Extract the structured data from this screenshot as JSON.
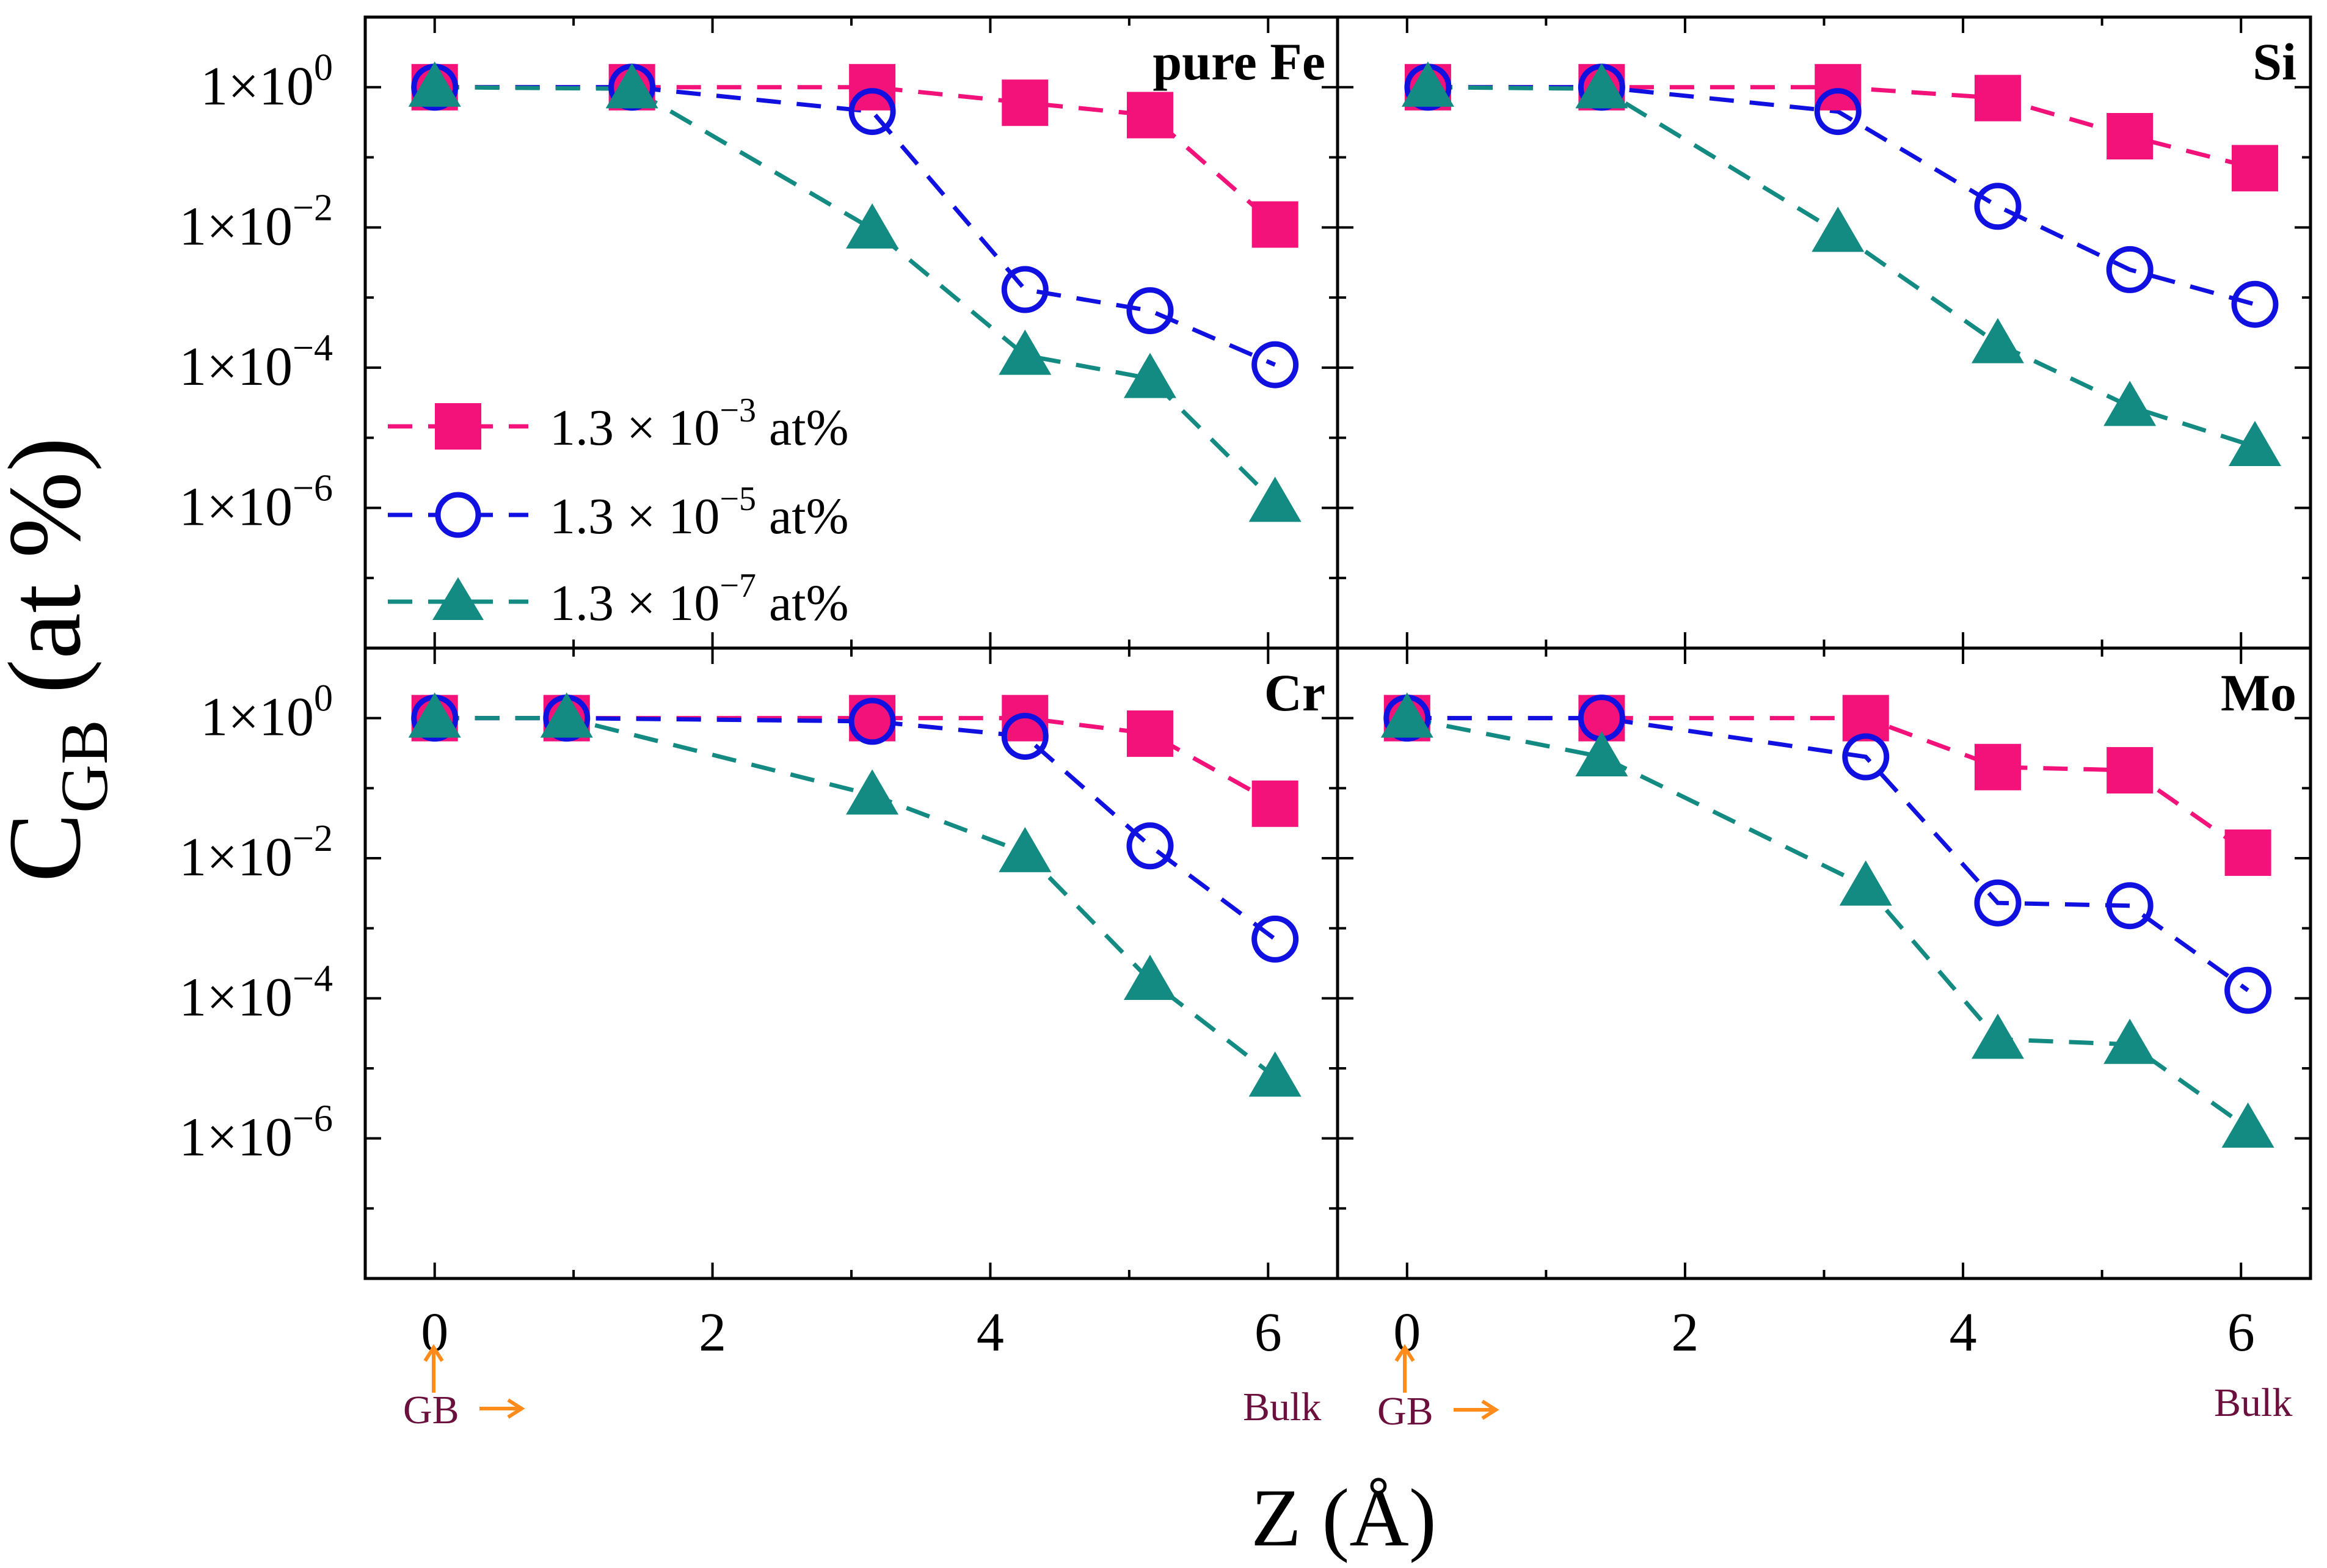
{
  "figure": {
    "ylabel_main": "C",
    "ylabel_sub": "GB",
    "ylabel_tail": " (at %)",
    "xlabel": "Z (Å)",
    "gb_label": "GB",
    "bulk_label": "Bulk",
    "x_ticks": [
      "0",
      "2",
      "4",
      "6"
    ],
    "y_ticks": [
      {
        "value": 1,
        "mantissa": "1×10",
        "exp": "0"
      },
      {
        "value": 0.01,
        "mantissa": "1×10",
        "exp": "−2"
      },
      {
        "value": 0.0001,
        "mantissa": "1×10",
        "exp": "−4"
      },
      {
        "value": 1e-06,
        "mantissa": "1×10",
        "exp": "−6"
      }
    ],
    "legend": [
      {
        "prefix": "1.3 × 10",
        "exp": "−3",
        "suffix": " at%"
      },
      {
        "prefix": "1.3 × 10",
        "exp": "−5",
        "suffix": " at%"
      },
      {
        "prefix": "1.3 × 10",
        "exp": "−7",
        "suffix": " at%"
      }
    ],
    "colors": {
      "series1": "#f2127a",
      "series2": "#1010e0",
      "series3": "#138a82",
      "annotation_arrow": "#ff8c1a",
      "annotation_text": "#6b0f3d"
    }
  },
  "chart_data": [
    {
      "type": "line",
      "title": "pure Fe",
      "xlim": [
        -0.5,
        6.5
      ],
      "ylim": [
        1e-08,
        10
      ],
      "yscale": "log",
      "series": [
        {
          "name": "1.3 × 10^-3 at%",
          "marker": "square",
          "x": [
            0,
            1.42,
            3.15,
            4.25,
            5.15,
            6.05
          ],
          "values": [
            1,
            1,
            1,
            0.6,
            0.4,
            0.011
          ]
        },
        {
          "name": "1.3 × 10^-5 at%",
          "marker": "circle",
          "x": [
            0,
            1.42,
            3.15,
            4.25,
            5.15,
            6.05
          ],
          "values": [
            1,
            1,
            0.45,
            0.0013,
            0.00065,
            0.00011
          ]
        },
        {
          "name": "1.3 × 10^-7 at%",
          "marker": "triangle",
          "x": [
            0,
            1.42,
            3.15,
            4.25,
            5.15,
            6.05
          ],
          "values": [
            1,
            0.95,
            0.0095,
            0.00015,
            7e-05,
            1.2e-06
          ]
        }
      ]
    },
    {
      "type": "line",
      "title": "Si",
      "xlim": [
        -0.5,
        6.5
      ],
      "ylim": [
        1e-08,
        10
      ],
      "yscale": "log",
      "series": [
        {
          "name": "1.3 × 10^-3 at%",
          "marker": "square",
          "x": [
            0.15,
            1.4,
            3.1,
            4.25,
            5.2,
            6.1
          ],
          "values": [
            1,
            1,
            1,
            0.7,
            0.2,
            0.07
          ]
        },
        {
          "name": "1.3 × 10^-5 at%",
          "marker": "circle",
          "x": [
            0.15,
            1.4,
            3.1,
            4.25,
            5.2,
            6.1
          ],
          "values": [
            1,
            1,
            0.45,
            0.02,
            0.0025,
            0.0008
          ]
        },
        {
          "name": "1.3 × 10^-7 at%",
          "marker": "triangle",
          "x": [
            0.15,
            1.4,
            3.1,
            4.25,
            5.2,
            6.1
          ],
          "values": [
            1,
            0.95,
            0.0085,
            0.00022,
            2.8e-05,
            7.5e-06
          ]
        }
      ]
    },
    {
      "type": "line",
      "title": "Cr",
      "xlim": [
        -0.5,
        6.5
      ],
      "ylim": [
        1e-08,
        10
      ],
      "yscale": "log",
      "series": [
        {
          "name": "1.3 × 10^-3 at%",
          "marker": "square",
          "x": [
            0,
            0.95,
            3.15,
            4.25,
            5.15,
            6.05
          ],
          "values": [
            1,
            1,
            1,
            1,
            0.6,
            0.06
          ]
        },
        {
          "name": "1.3 × 10^-5 at%",
          "marker": "circle",
          "x": [
            0,
            0.95,
            3.15,
            4.25,
            5.15,
            6.05
          ],
          "values": [
            1,
            1,
            0.9,
            0.55,
            0.015,
            0.0007
          ]
        },
        {
          "name": "1.3 × 10^-7 at%",
          "marker": "triangle",
          "x": [
            0,
            0.95,
            3.15,
            4.25,
            5.15,
            6.05
          ],
          "values": [
            1,
            1,
            0.08,
            0.012,
            0.00018,
            7.5e-06
          ]
        }
      ]
    },
    {
      "type": "line",
      "title": "Mo",
      "xlim": [
        -0.5,
        6.5
      ],
      "ylim": [
        1e-08,
        10
      ],
      "yscale": "log",
      "series": [
        {
          "name": "1.3 × 10^-3 at%",
          "marker": "square",
          "x": [
            0,
            1.4,
            3.3,
            4.25,
            5.2,
            6.05
          ],
          "values": [
            1,
            1,
            1,
            0.2,
            0.18,
            0.012
          ]
        },
        {
          "name": "1.3 × 10^-5 at%",
          "marker": "circle",
          "x": [
            0,
            1.4,
            3.3,
            4.25,
            5.2,
            6.05
          ],
          "values": [
            1,
            1,
            0.28,
            0.0023,
            0.0021,
            0.00013
          ]
        },
        {
          "name": "1.3 × 10^-7 at%",
          "marker": "triangle",
          "x": [
            0,
            1.4,
            3.3,
            4.25,
            5.2,
            6.05
          ],
          "values": [
            1,
            0.28,
            0.004,
            2.6e-05,
            2.2e-05,
            1.4e-06
          ]
        }
      ]
    }
  ]
}
